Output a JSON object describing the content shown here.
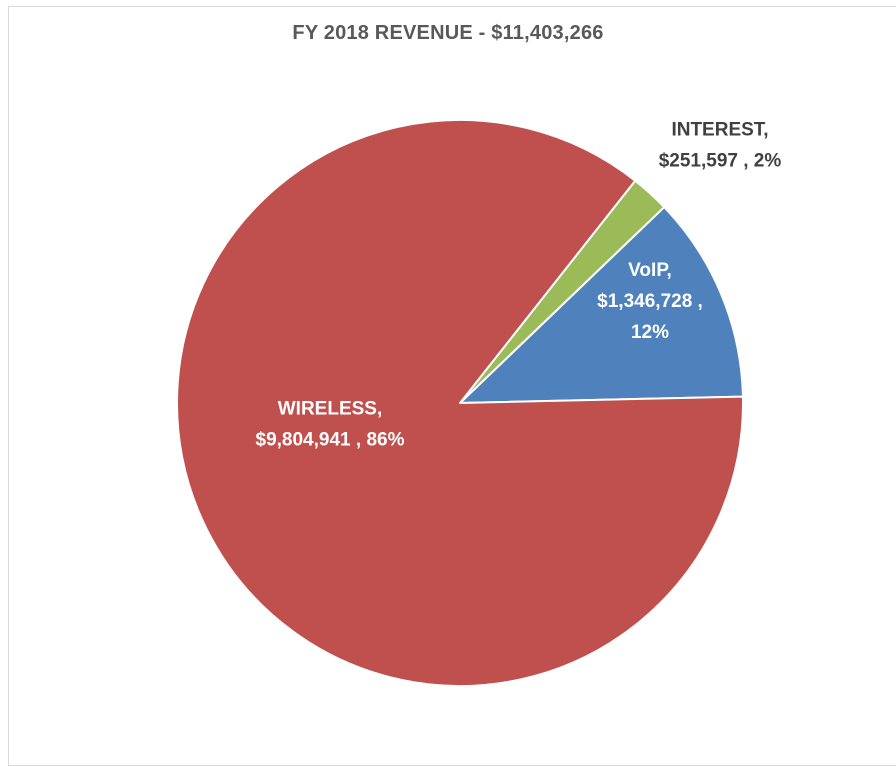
{
  "chart_data": {
    "type": "pie",
    "title": "FY 2018 REVENUE - $11,403,266",
    "slices": [
      {
        "name": "VoIP",
        "value": 1346728,
        "percent": 12,
        "color": "#4f81bd",
        "label_lines": [
          "VoIP,",
          "$1,346,728 ,",
          "12%"
        ],
        "label_color": "#ffffff"
      },
      {
        "name": "INTEREST",
        "value": 251597,
        "percent": 2,
        "color": "#9bbb59",
        "label_lines": [
          "INTEREST,",
          "$251,597 , 2%"
        ],
        "label_color": "#404040"
      },
      {
        "name": "WIRELESS",
        "value": 9804941,
        "percent": 86,
        "color": "#c0504d",
        "label_lines": [
          "WIRELESS,",
          "$9,804,941 , 86%"
        ],
        "label_color": "#ffffff"
      }
    ],
    "legend": "none"
  }
}
